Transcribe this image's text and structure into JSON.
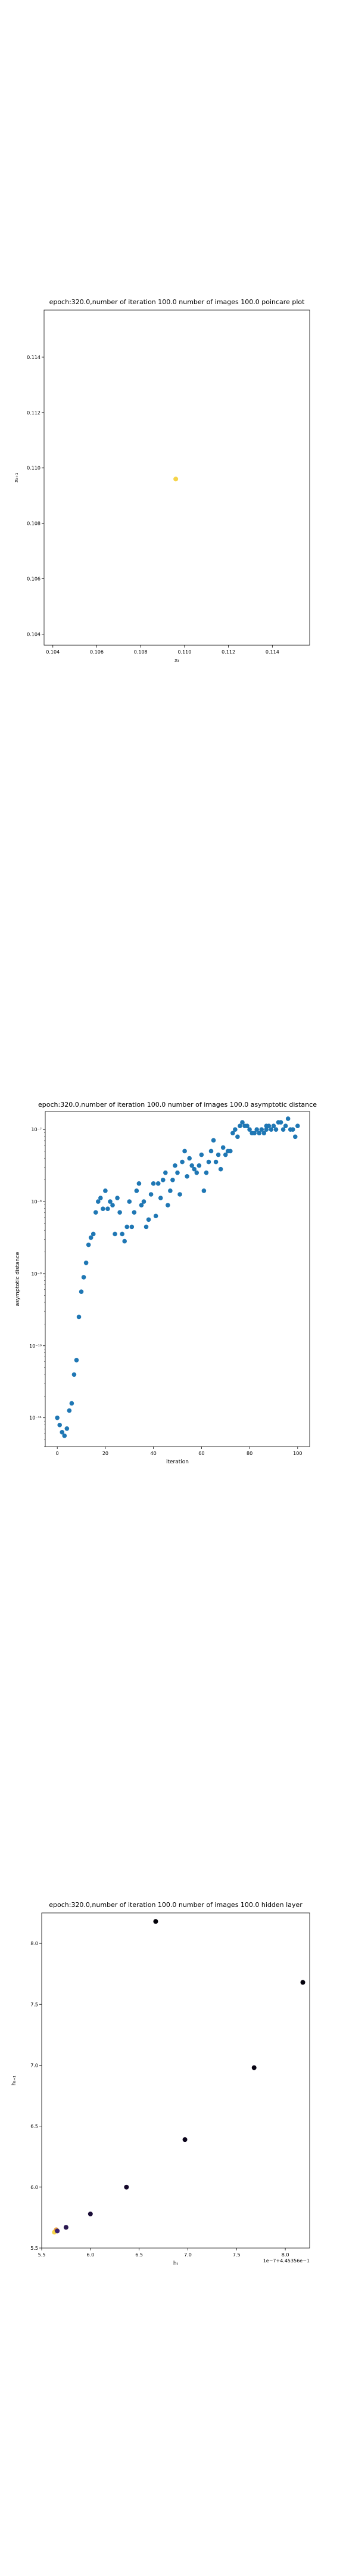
{
  "chart_data": [
    {
      "type": "scatter",
      "title": "epoch:320.0,number of iteration 100.0 number of images 100.0 poincare plot",
      "xlabel": "xₜ",
      "ylabel": "xₜ₊₁",
      "xlim": [
        0.1036,
        0.1157
      ],
      "ylim": [
        0.1036,
        0.1157
      ],
      "xticks": [
        0.104,
        0.106,
        0.108,
        0.11,
        0.112,
        0.114
      ],
      "xtick_labels": [
        "0.104",
        "0.106",
        "0.108",
        "0.110",
        "0.112",
        "0.114"
      ],
      "yticks": [
        0.104,
        0.106,
        0.108,
        0.11,
        0.112,
        0.114
      ],
      "ytick_labels": [
        "0.104",
        "0.106",
        "0.108",
        "0.110",
        "0.112",
        "0.114"
      ],
      "points": [
        {
          "x": 0.1096,
          "y": 0.1096
        }
      ],
      "marker_color": "#f5d44a",
      "grid": false
    },
    {
      "type": "scatter",
      "title": "epoch:320.0,number of iteration 100.0  number of images 100.0 asymptotic distance",
      "xlabel": "iteration",
      "ylabel": "asymptotic distance",
      "xlim": [
        -5,
        105
      ],
      "y_scale": "log",
      "ylim_exp": [
        -11.4,
        -6.75
      ],
      "xticks": [
        0,
        20,
        40,
        60,
        80,
        100
      ],
      "xtick_labels": [
        "0",
        "20",
        "40",
        "60",
        "80",
        "100"
      ],
      "yticks_exp": [
        -11,
        -10,
        -9,
        -8,
        -7
      ],
      "ytick_labels": [
        "10⁻¹¹",
        "10⁻¹⁰",
        "10⁻⁹",
        "10⁻⁸",
        "10⁻⁷"
      ],
      "x": [
        0,
        1,
        2,
        3,
        4,
        5,
        6,
        7,
        8,
        9,
        10,
        11,
        12,
        13,
        14,
        15,
        16,
        17,
        18,
        19,
        20,
        21,
        22,
        23,
        24,
        25,
        26,
        27,
        28,
        29,
        30,
        31,
        32,
        33,
        34,
        35,
        36,
        37,
        38,
        39,
        40,
        41,
        42,
        43,
        44,
        45,
        46,
        47,
        48,
        49,
        50,
        51,
        52,
        53,
        54,
        55,
        56,
        57,
        58,
        59,
        60,
        61,
        62,
        63,
        64,
        65,
        66,
        67,
        68,
        69,
        70,
        71,
        72,
        73,
        74,
        75,
        76,
        77,
        78,
        79,
        80,
        81,
        82,
        83,
        84,
        85,
        86,
        87,
        87,
        88,
        89,
        90,
        91,
        92,
        93,
        94,
        95,
        96,
        97,
        98,
        99,
        100
      ],
      "log10_y": [
        -11.0,
        -11.1,
        -11.2,
        -11.25,
        -11.15,
        -10.9,
        -10.8,
        -10.4,
        -10.2,
        -9.6,
        -9.25,
        -9.05,
        -8.85,
        -8.6,
        -8.5,
        -8.45,
        -8.15,
        -8.0,
        -7.95,
        -8.1,
        -7.85,
        -8.1,
        -8.0,
        -8.05,
        -8.45,
        -7.95,
        -8.15,
        -8.45,
        -8.55,
        -8.35,
        -8.0,
        -8.35,
        -8.15,
        -7.85,
        -7.75,
        -8.05,
        -8.0,
        -8.35,
        -8.25,
        -7.9,
        -7.75,
        -8.2,
        -7.75,
        -7.95,
        -7.7,
        -7.6,
        -8.05,
        -7.85,
        -7.7,
        -7.5,
        -7.6,
        -7.9,
        -7.45,
        -7.3,
        -7.65,
        -7.4,
        -7.5,
        -7.55,
        -7.6,
        -7.5,
        -7.35,
        -7.85,
        -7.6,
        -7.45,
        -7.3,
        -7.15,
        -7.45,
        -7.35,
        -7.55,
        -7.25,
        -7.35,
        -7.3,
        -7.3,
        -7.05,
        -7.0,
        -7.1,
        -6.95,
        -6.9,
        -6.95,
        -6.95,
        -7.0,
        -7.05,
        -7.05,
        -7.0,
        -7.05,
        -7.0,
        -7.05,
        -7.0,
        -6.95,
        -6.95,
        -7.0,
        -6.95,
        -7.0,
        -6.9,
        -6.9,
        -7.0,
        -6.95,
        -6.85,
        -7.0,
        -7.0,
        -7.1,
        -6.95
      ],
      "marker_color": "#1f77b4",
      "grid": false
    },
    {
      "type": "scatter",
      "title": "epoch:320.0,number of iteration 100.0  number of images 100.0 hidden layer",
      "xlabel": "hₜ",
      "ylabel": "hₜ₊₁",
      "xlim": [
        5.5,
        8.25
      ],
      "ylim": [
        5.5,
        8.25
      ],
      "xticks": [
        5.5,
        6.0,
        6.5,
        7.0,
        7.5,
        8.0
      ],
      "xtick_labels": [
        "5.5",
        "6.0",
        "6.5",
        "7.0",
        "7.5",
        "8.0"
      ],
      "yticks": [
        5.5,
        6.0,
        6.5,
        7.0,
        7.5,
        8.0
      ],
      "ytick_labels": [
        "5.5",
        "6.0",
        "6.5",
        "7.0",
        "7.5",
        "8.0"
      ],
      "offset_label": "1e−7+4.45356e−1",
      "points": [
        {
          "x": 5.63,
          "y": 5.63,
          "color": "#f5d44a"
        },
        {
          "x": 5.65,
          "y": 5.65,
          "color": "#e8a040"
        },
        {
          "x": 5.66,
          "y": 5.64,
          "color": "#3a1f6e"
        },
        {
          "x": 5.75,
          "y": 5.67,
          "color": "#2a1850"
        },
        {
          "x": 6.0,
          "y": 5.78,
          "color": "#1a0d38"
        },
        {
          "x": 6.37,
          "y": 6.0,
          "color": "#14082a"
        },
        {
          "x": 6.97,
          "y": 6.39,
          "color": "#0c051c"
        },
        {
          "x": 7.68,
          "y": 6.98,
          "color": "#070312"
        },
        {
          "x": 8.18,
          "y": 7.68,
          "color": "#04020c"
        },
        {
          "x": 6.67,
          "y": 8.18,
          "color": "#020108"
        }
      ],
      "grid": false
    }
  ]
}
